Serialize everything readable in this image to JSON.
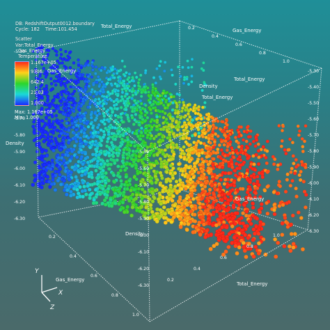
{
  "header": {
    "db_line": "DB: RedshiftOutput0012.boundary",
    "cycle_label": "Cycle: 182",
    "time_label": "Time:101.454",
    "plot_title": "Scatter",
    "var_line": "Var:Total_Energy",
    "var2_line": "Gas_Energy",
    "var3_line": "Temperature"
  },
  "legend": {
    "labels": [
      "1.167e+05",
      "9306.",
      "642.4",
      "21.03",
      "1.000"
    ],
    "max_label": "Max: 1.167e+05",
    "min_label": "Min: 1.000",
    "colors": [
      "#ff2a1a",
      "#ffd21a",
      "#2cd62c",
      "#1ad8d8",
      "#1a2aff"
    ]
  },
  "chart_data": {
    "type": "scatter",
    "dimensions": 3,
    "axes": {
      "x": {
        "name": "Gas_Energy",
        "range": [
          0.0,
          1.0
        ],
        "ticks": [
          "0.2",
          "0.4",
          "0.6",
          "0.8",
          "1.0"
        ]
      },
      "y": {
        "name": "Density",
        "range": [
          -6.3,
          -5.3
        ],
        "ticks": [
          "-5.30",
          "-5.40",
          "-5.50",
          "-5.60",
          "-5.70",
          "-5.80",
          "-5.90",
          "-6.00",
          "-6.10",
          "-6.20",
          "-6.30"
        ]
      },
      "z": {
        "name": "Total_Energy",
        "range": [
          0.0,
          1.0
        ],
        "ticks": [
          "0.2",
          "0.4",
          "0.6",
          "0.8",
          "1.0"
        ]
      }
    },
    "color_variable": "Temperature",
    "color_range": [
      1.0,
      116700.0
    ],
    "color_scale": "log",
    "box_visible": true,
    "grid": false,
    "point_count_approx": 7000
  },
  "triad": {
    "x": "X",
    "y": "Y",
    "z": "Z"
  }
}
